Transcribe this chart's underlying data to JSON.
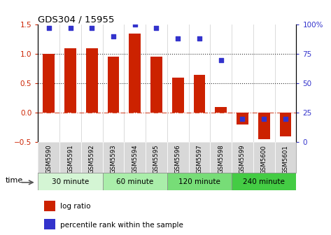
{
  "title": "GDS304 / 15955",
  "samples": [
    "GSM5590",
    "GSM5591",
    "GSM5592",
    "GSM5593",
    "GSM5594",
    "GSM5595",
    "GSM5596",
    "GSM5597",
    "GSM5598",
    "GSM5599",
    "GSM5600",
    "GSM5601"
  ],
  "log_ratio": [
    1.0,
    1.1,
    1.1,
    0.95,
    1.35,
    0.95,
    0.6,
    0.65,
    0.1,
    -0.2,
    -0.45,
    -0.4
  ],
  "percentile": [
    97,
    97,
    97,
    90,
    100,
    97,
    88,
    88,
    70,
    20,
    20,
    20
  ],
  "bar_color": "#cc2200",
  "dot_color": "#3333cc",
  "ylim_left": [
    -0.5,
    1.5
  ],
  "ylim_right": [
    0,
    100
  ],
  "yticks_left": [
    -0.5,
    0,
    0.5,
    1.0,
    1.5
  ],
  "yticks_right": [
    0,
    25,
    50,
    75,
    100
  ],
  "ytick_labels_right": [
    "0",
    "25",
    "50",
    "75",
    "100%"
  ],
  "hlines": [
    0.5,
    1.0
  ],
  "zero_line_color": "#cc2200",
  "groups": [
    {
      "label": "30 minute",
      "start": 0,
      "end": 3,
      "color": "#d4f5d4"
    },
    {
      "label": "60 minute",
      "start": 3,
      "end": 6,
      "color": "#aaeeaa"
    },
    {
      "label": "120 minute",
      "start": 6,
      "end": 9,
      "color": "#77dd77"
    },
    {
      "label": "240 minute",
      "start": 9,
      "end": 12,
      "color": "#44cc44"
    }
  ],
  "time_label": "time",
  "legend_items": [
    {
      "label": "log ratio",
      "color": "#cc2200"
    },
    {
      "label": "percentile rank within the sample",
      "color": "#3333cc"
    }
  ],
  "background_color": "#ffffff",
  "bar_width": 0.55,
  "sample_box_color": "#d8d8d8",
  "vline_color": "#cccccc",
  "hline_dotted_color": "#333333",
  "zero_dashed_color": "#cc2200"
}
